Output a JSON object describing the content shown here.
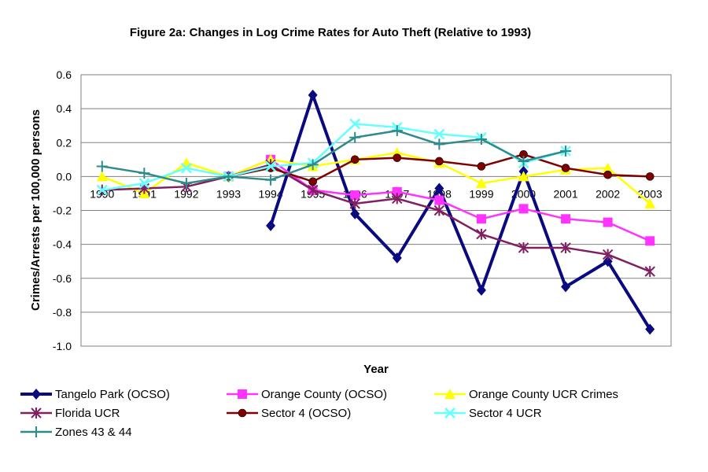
{
  "chart_data": {
    "type": "line",
    "title": "Figure 2a: Changes in Log Crime Rates for Auto Theft (Relative to 1993)",
    "xlabel": "Year",
    "ylabel": "Crimes/Arrests per 100,000 persons",
    "categories": [
      "1990",
      "1991",
      "1992",
      "1993",
      "1994",
      "1995",
      "1996",
      "1997",
      "1998",
      "1999",
      "2000",
      "2001",
      "2002",
      "2003"
    ],
    "yticks": [
      "0.6",
      "0.4",
      "0.2",
      "0.0",
      "-0.2",
      "-0.4",
      "-0.6",
      "-0.8",
      "-1.0"
    ],
    "ylim": [
      -1.0,
      0.6
    ],
    "grid": true,
    "legend_position": "bottom",
    "series": [
      {
        "name": "Tangelo Park (OCSO)",
        "color": "#0a0a80",
        "marker": "diamond",
        "values": [
          null,
          null,
          null,
          null,
          -0.29,
          0.48,
          -0.22,
          -0.48,
          -0.07,
          -0.67,
          0.03,
          -0.65,
          -0.5,
          -0.9
        ]
      },
      {
        "name": "Orange County (OCSO)",
        "color": "#ff33ff",
        "marker": "square",
        "values": [
          null,
          null,
          null,
          0.0,
          0.1,
          -0.08,
          -0.11,
          -0.09,
          -0.14,
          -0.25,
          -0.19,
          -0.25,
          -0.27,
          -0.38
        ]
      },
      {
        "name": "Orange County UCR Crimes",
        "color": "#ffff00",
        "marker": "triangle",
        "values": [
          0.0,
          -0.1,
          0.08,
          0.0,
          0.1,
          0.06,
          0.1,
          0.14,
          0.08,
          -0.04,
          0.0,
          0.04,
          0.05,
          -0.16
        ]
      },
      {
        "name": "Florida UCR",
        "color": "#802060",
        "marker": "star",
        "values": [
          -0.08,
          -0.07,
          -0.06,
          0.0,
          0.07,
          -0.08,
          -0.16,
          -0.13,
          -0.2,
          -0.34,
          -0.42,
          -0.42,
          -0.46,
          -0.56
        ]
      },
      {
        "name": "Sector 4 (OCSO)",
        "color": "#800000",
        "marker": "circle",
        "values": [
          null,
          null,
          null,
          0.0,
          0.05,
          -0.03,
          0.1,
          0.11,
          0.09,
          0.06,
          0.13,
          0.05,
          0.01,
          0.0
        ]
      },
      {
        "name": "Sector 4 UCR",
        "color": "#66ffff",
        "marker": "x",
        "values": [
          -0.08,
          -0.04,
          0.05,
          0.0,
          0.06,
          0.08,
          0.31,
          0.29,
          0.25,
          0.23,
          0.08,
          0.15,
          null,
          null
        ]
      },
      {
        "name": "Zones 43 & 44",
        "color": "#2e8b8b",
        "marker": "plus",
        "values": [
          0.06,
          0.02,
          -0.04,
          0.0,
          -0.02,
          0.07,
          0.23,
          0.27,
          0.19,
          0.22,
          0.09,
          0.15,
          null,
          null
        ]
      }
    ]
  }
}
